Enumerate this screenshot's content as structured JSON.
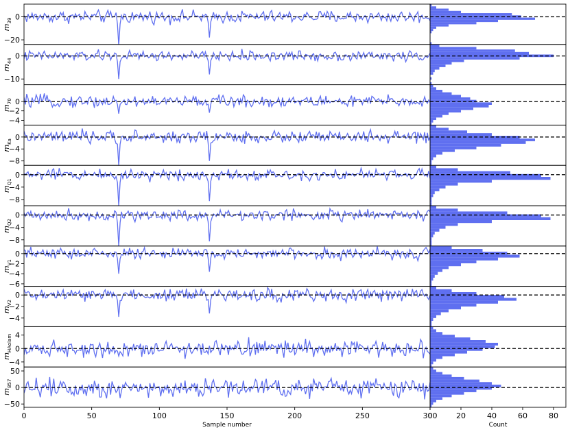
{
  "chart_data": {
    "type": "line",
    "description_free": true,
    "trace_xlim": [
      0,
      300
    ],
    "trace_xticks": [
      0,
      50,
      100,
      150,
      200,
      250,
      300
    ],
    "trace_xtick_labels": [
      "0",
      "50",
      "100",
      "150",
      "200",
      "250",
      "300"
    ],
    "trace_xlabel": "Sample number",
    "hist_xlim": [
      0,
      88
    ],
    "hist_xticks": [
      0,
      20,
      40,
      60,
      80
    ],
    "hist_xtick_labels": [
      "0",
      "20",
      "40",
      "60",
      "80"
    ],
    "hist_xlabel": "Count",
    "line_color": "#5f6ff0",
    "bar_color": "#5f6ff0",
    "reference_line": "dashed black at 0",
    "panels": [
      {
        "label_main": "m",
        "label_sub": "39",
        "ylim": [
          -24,
          11
        ],
        "yticks": [
          0,
          -20
        ],
        "ytick_labels": [
          "0",
          "−20"
        ],
        "sd": 3.8,
        "spikes": [
          [
            70,
            -25
          ],
          [
            137,
            -18
          ]
        ],
        "hist_counts": [
          1,
          0,
          0,
          0,
          0,
          1,
          2,
          4,
          12,
          30,
          44,
          68,
          59,
          53,
          20,
          12,
          4,
          1
        ],
        "hist_range": [
          -24,
          11
        ]
      },
      {
        "label_main": "m",
        "label_sub": "44",
        "ylim": [
          -12.5,
          5
        ],
        "yticks": [
          0,
          -10
        ],
        "ytick_labels": [
          "0",
          "−10"
        ],
        "sd": 1.6,
        "spikes": [
          [
            70,
            -10
          ],
          [
            137,
            -8
          ]
        ],
        "hist_counts": [
          1,
          0,
          1,
          0,
          2,
          3,
          6,
          10,
          14,
          22,
          58,
          80,
          64,
          55,
          30,
          6
        ],
        "hist_range": [
          -12.5,
          5
        ]
      },
      {
        "label_main": "m",
        "label_sub": "70",
        "ylim": [
          -5,
          3.5
        ],
        "yticks": [
          0,
          -2,
          -4
        ],
        "ytick_labels": [
          "0",
          "−2",
          "−4"
        ],
        "sd": 0.9,
        "spikes": [
          [
            70,
            -2.6
          ],
          [
            137,
            -2.4
          ]
        ],
        "hist_counts": [
          1,
          2,
          4,
          8,
          12,
          20,
          28,
          38,
          40,
          30,
          26,
          20,
          14,
          8,
          4,
          2
        ],
        "hist_range": [
          -5,
          3.5
        ]
      },
      {
        "label_main": "m",
        "label_sub": "Ka",
        "ylim": [
          -9.5,
          4
        ],
        "yticks": [
          0,
          -4,
          -8
        ],
        "ytick_labels": [
          "0",
          "−4",
          "−8"
        ],
        "sd": 1.5,
        "spikes": [
          [
            70,
            -9.5
          ],
          [
            137,
            -8
          ]
        ],
        "hist_counts": [
          1,
          1,
          2,
          4,
          8,
          16,
          30,
          46,
          62,
          68,
          58,
          40,
          24,
          12,
          4
        ],
        "hist_range": [
          -9.5,
          4
        ]
      },
      {
        "label_main": "m",
        "label_sub": "Q1",
        "ylim": [
          -10,
          3
        ],
        "yticks": [
          0,
          -4,
          -8
        ],
        "ytick_labels": [
          "0",
          "−4",
          "−8"
        ],
        "sd": 1.3,
        "spikes": [
          [
            70,
            -10
          ],
          [
            137,
            -8.5
          ]
        ],
        "hist_counts": [
          1,
          1,
          1,
          2,
          3,
          6,
          10,
          18,
          40,
          78,
          72,
          52,
          18,
          4
        ],
        "hist_range": [
          -10,
          3
        ]
      },
      {
        "label_main": "m",
        "label_sub": "Q2",
        "ylim": [
          -10,
          3
        ],
        "yticks": [
          0,
          -4,
          -8
        ],
        "ytick_labels": [
          "0",
          "−4",
          "−8"
        ],
        "sd": 1.3,
        "spikes": [
          [
            70,
            -10
          ],
          [
            137,
            -8.5
          ]
        ],
        "hist_counts": [
          1,
          1,
          1,
          2,
          3,
          6,
          10,
          18,
          40,
          78,
          72,
          50,
          18,
          4
        ],
        "hist_range": [
          -10,
          3
        ]
      },
      {
        "label_main": "m",
        "label_sub": "V1",
        "ylim": [
          -6.5,
          1.5
        ],
        "yticks": [
          0,
          -2,
          -4,
          -6
        ],
        "ytick_labels": [
          "0",
          "−2",
          "−4",
          "−6"
        ],
        "sd": 0.8,
        "spikes": [
          [
            70,
            -4
          ],
          [
            137,
            -3.6
          ]
        ],
        "hist_counts": [
          1,
          1,
          2,
          3,
          5,
          8,
          12,
          20,
          30,
          44,
          58,
          50,
          34,
          14
        ],
        "hist_range": [
          -6.5,
          1.5
        ]
      },
      {
        "label_main": "m",
        "label_sub": "V2",
        "ylim": [
          -5.5,
          1.5
        ],
        "yticks": [
          0,
          -2,
          -4
        ],
        "ytick_labels": [
          "0",
          "−2",
          "−4"
        ],
        "sd": 0.8,
        "spikes": [
          [
            70,
            -3.8
          ],
          [
            137,
            -3.2
          ]
        ],
        "hist_counts": [
          1,
          1,
          2,
          4,
          7,
          12,
          20,
          30,
          44,
          56,
          48,
          30,
          14,
          4
        ],
        "hist_range": [
          -5.5,
          1.5
        ]
      },
      {
        "label_main": "m",
        "label_sub": "HAolam",
        "ylim": [
          -5.5,
          6.5
        ],
        "yticks": [
          4,
          0,
          -4
        ],
        "ytick_labels": [
          "4",
          "0",
          "−4"
        ],
        "sd": 1.7,
        "spikes": [],
        "hist_counts": [
          1,
          2,
          4,
          8,
          16,
          24,
          34,
          42,
          44,
          36,
          26,
          16,
          8,
          4,
          2
        ],
        "hist_range": [
          -5.5,
          6.5
        ]
      },
      {
        "label_main": "m",
        "label_sub": "857",
        "ylim": [
          -60,
          62
        ],
        "yticks": [
          50,
          0,
          -50
        ],
        "ytick_labels": [
          "50",
          "0",
          "−50"
        ],
        "sd": 22,
        "spikes": [],
        "hist_counts": [
          1,
          2,
          4,
          8,
          14,
          22,
          30,
          40,
          46,
          40,
          32,
          22,
          14,
          8,
          4,
          2
        ],
        "hist_range": [
          -60,
          62
        ]
      }
    ]
  }
}
